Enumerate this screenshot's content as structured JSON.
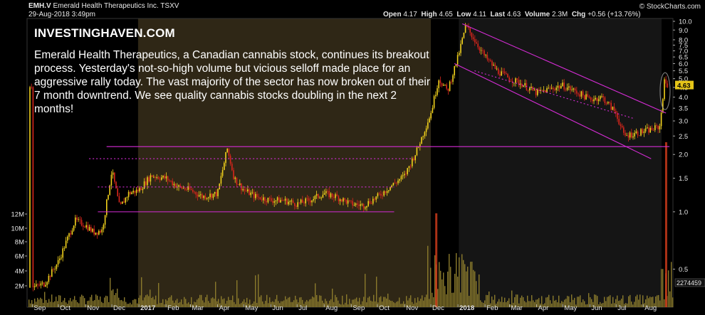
{
  "header": {
    "symbol": "EMH.V",
    "company": "Emerald Health Therapeutics Inc.",
    "exchange": "TSXV",
    "datetime": "29-Aug-2018 3:49pm",
    "open_label": "Open",
    "open": "4.17",
    "high_label": "High",
    "high": "4.65",
    "low_label": "Low",
    "low": "4.11",
    "last_label": "Last",
    "last": "4.63",
    "volume_label": "Volume",
    "volume": "2.3M",
    "chg_label": "Chg",
    "chg": "+0.56 (+13.76%)",
    "source": "© StockCharts.com"
  },
  "annotation": {
    "brand": "INVESTINGHAVEN.COM",
    "text": "Emerald Health Therapeutics, a Canadian cannabis stock, continues its breakout process. Yesterday's not-so-high volume but vicious selloff made place for an aggressive rally today. The vast majority of the sector has now broken out of their 7 month downtrend. We see quality cannabis stocks doubling in the next 2 months!"
  },
  "colors": {
    "background": "#000000",
    "up_candle": "#f2d21c",
    "down_candle": "#d8261c",
    "trendline": "#d52cd5",
    "shade": "#2f2716",
    "volume": "#8a7a2c",
    "highlight": "#c93a1a"
  },
  "chart_data": {
    "type": "candlestick",
    "price_scale": "log",
    "ylim": [
      0.35,
      10
    ],
    "price_ticks": [
      "10.0",
      "9.0",
      "8.0",
      "7.5",
      "7.0",
      "6.5",
      "6.0",
      "5.5",
      "5.0",
      "4.5",
      "4.0",
      "3.5",
      "3.0",
      "2.5",
      "2.0",
      "1.5",
      "1.0",
      "0.5"
    ],
    "last_price": "4.63",
    "volume_ticks": [
      "12M",
      "10M",
      "8M",
      "6M",
      "4M",
      "2M"
    ],
    "last_volume_label": "2274459",
    "x_labels": [
      "Sep",
      "Oct",
      "Nov",
      "Dec",
      "2017",
      "Feb",
      "Mar",
      "Apr",
      "May",
      "Jun",
      "Jul",
      "Aug",
      "Sep",
      "Oct",
      "Nov",
      "Dec",
      "2018",
      "Feb",
      "Mar",
      "Apr",
      "May",
      "Jun",
      "Jul",
      "Aug"
    ],
    "price_path": [
      [
        "2016-09-01",
        0.4
      ],
      [
        "2016-09-15",
        0.42
      ],
      [
        "2016-10-01",
        0.55
      ],
      [
        "2016-10-10",
        0.7
      ],
      [
        "2016-10-20",
        0.9
      ],
      [
        "2016-11-01",
        0.85
      ],
      [
        "2016-11-10",
        0.78
      ],
      [
        "2016-11-20",
        0.8
      ],
      [
        "2016-12-01",
        1.65
      ],
      [
        "2016-12-10",
        1.05
      ],
      [
        "2016-12-20",
        1.25
      ],
      [
        "2017-01-01",
        1.3
      ],
      [
        "2017-01-15",
        1.55
      ],
      [
        "2017-02-01",
        1.5
      ],
      [
        "2017-02-15",
        1.35
      ],
      [
        "2017-03-01",
        1.3
      ],
      [
        "2017-03-15",
        1.2
      ],
      [
        "2017-04-01",
        1.25
      ],
      [
        "2017-04-12",
        2.15
      ],
      [
        "2017-04-20",
        1.5
      ],
      [
        "2017-05-01",
        1.3
      ],
      [
        "2017-05-15",
        1.2
      ],
      [
        "2017-06-01",
        1.15
      ],
      [
        "2017-06-15",
        1.15
      ],
      [
        "2017-07-01",
        1.1
      ],
      [
        "2017-07-15",
        1.15
      ],
      [
        "2017-08-01",
        1.25
      ],
      [
        "2017-08-15",
        1.2
      ],
      [
        "2017-09-01",
        1.1
      ],
      [
        "2017-09-15",
        1.08
      ],
      [
        "2017-10-01",
        1.2
      ],
      [
        "2017-10-15",
        1.35
      ],
      [
        "2017-11-01",
        1.55
      ],
      [
        "2017-11-15",
        2.1
      ],
      [
        "2017-12-01",
        3.3
      ],
      [
        "2017-12-10",
        5.0
      ],
      [
        "2017-12-20",
        4.3
      ],
      [
        "2018-01-01",
        6.5
      ],
      [
        "2018-01-10",
        9.5
      ],
      [
        "2018-01-20",
        8.0
      ],
      [
        "2018-02-01",
        6.5
      ],
      [
        "2018-02-15",
        5.5
      ],
      [
        "2018-03-01",
        5.0
      ],
      [
        "2018-03-15",
        4.7
      ],
      [
        "2018-04-01",
        4.2
      ],
      [
        "2018-04-15",
        4.4
      ],
      [
        "2018-05-01",
        4.6
      ],
      [
        "2018-05-15",
        4.3
      ],
      [
        "2018-06-01",
        3.9
      ],
      [
        "2018-06-15",
        4.0
      ],
      [
        "2018-07-01",
        3.3
      ],
      [
        "2018-07-10",
        2.5
      ],
      [
        "2018-07-25",
        2.6
      ],
      [
        "2018-08-10",
        2.7
      ],
      [
        "2018-08-20",
        2.8
      ],
      [
        "2018-08-25",
        4.8
      ],
      [
        "2018-08-29",
        4.63
      ]
    ],
    "trendlines": [
      {
        "name": "support_1",
        "style": "solid",
        "points": [
          [
            "2016-11-15",
            1.0
          ],
          [
            "2017-10-20",
            1.0
          ]
        ]
      },
      {
        "name": "resistance_dotted_1",
        "style": "dotted",
        "points": [
          [
            "2016-11-05",
            1.9
          ],
          [
            "2017-11-10",
            1.9
          ]
        ]
      },
      {
        "name": "resistance_dotted_2",
        "style": "dotted",
        "points": [
          [
            "2016-11-15",
            1.35
          ],
          [
            "2017-10-20",
            1.35
          ]
        ]
      },
      {
        "name": "breakout_level",
        "style": "solid",
        "points": [
          [
            "2016-11-25",
            2.2
          ],
          [
            "2018-08-31",
            2.2
          ]
        ]
      },
      {
        "name": "channel_upper",
        "style": "solid",
        "points": [
          [
            "2018-01-06",
            9.7
          ],
          [
            "2018-08-27",
            3.3
          ]
        ]
      },
      {
        "name": "channel_lower",
        "style": "solid",
        "points": [
          [
            "2017-12-28",
            6.0
          ],
          [
            "2018-08-10",
            1.9
          ]
        ]
      },
      {
        "name": "channel_mid",
        "style": "dotted",
        "points": [
          [
            "2018-01-20",
            5.5
          ],
          [
            "2018-07-20",
            3.1
          ]
        ]
      }
    ]
  }
}
